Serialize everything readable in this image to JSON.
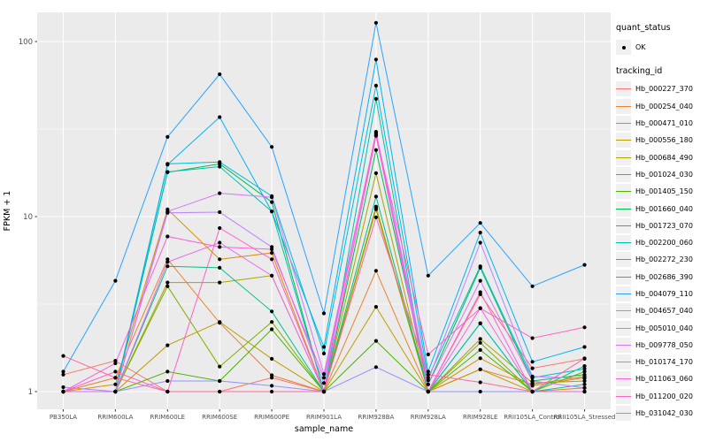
{
  "figure": {
    "bg": "#FFFFFF",
    "panel_bg": "#EBEBEB",
    "grid_color": "#FFFFFF",
    "tick_color": "#333333",
    "tick_label_color": "#4D4D4D",
    "point_color": "#000000"
  },
  "axes": {
    "x_title": "sample_name",
    "y_title": "FPKM + 1",
    "y_tick_labels": [
      "1",
      "10",
      "100"
    ]
  },
  "legend": {
    "quant_status_title": "quant_status",
    "quant_status_items": [
      {
        "label": "OK",
        "shape": "point"
      }
    ],
    "tracking_id_title": "tracking_id"
  },
  "chart_data": {
    "type": "line",
    "title": "",
    "xlabel": "sample_name",
    "ylabel": "FPKM + 1",
    "x_type": "categorical",
    "y_scale": "log10",
    "y_ticks": [
      1,
      10,
      100
    ],
    "y_minor": [
      3.162,
      31.62
    ],
    "ylim": [
      0.79,
      150
    ],
    "grid": true,
    "legend_position": "right",
    "categories": [
      "PB350LA",
      "RRIM600LA",
      "RRIM600LE",
      "RRIM600SE",
      "RRIM600PE",
      "RRIM901LA",
      "RRIM928BA",
      "RRIM928LA",
      "RRIM928LE",
      "RRII105LA_Control",
      "RRII105LA_Stressed"
    ],
    "series": [
      {
        "name": "Hb_000227_370",
        "color": "#F8766D",
        "values": [
          1.25,
          1.5,
          1.0,
          1.0,
          1.2,
          1.0,
          11.2,
          1.0,
          3.6,
          1.36,
          1.54
        ]
      },
      {
        "name": "Hb_000254_040",
        "color": "#EA8331",
        "values": [
          1.0,
          1.2,
          5.7,
          2.47,
          1.24,
          1.0,
          4.9,
          1.0,
          1.34,
          1.1,
          1.22
        ]
      },
      {
        "name": "Hb_000471_010",
        "color": "#D89000",
        "values": [
          1.0,
          1.1,
          11.0,
          5.7,
          6.2,
          1.0,
          11.4,
          1.0,
          1.55,
          1.08,
          1.2
        ]
      },
      {
        "name": "Hb_000556_180",
        "color": "#C09B00",
        "values": [
          1.0,
          1.0,
          1.84,
          2.5,
          1.54,
          1.0,
          3.05,
          1.0,
          1.34,
          1.0,
          1.05
        ]
      },
      {
        "name": "Hb_000684_490",
        "color": "#A3A500",
        "values": [
          1.0,
          1.0,
          4.2,
          4.2,
          4.6,
          1.0,
          17.7,
          1.0,
          2.0,
          1.12,
          1.15
        ]
      },
      {
        "name": "Hb_001024_030",
        "color": "#7CAE00",
        "values": [
          1.0,
          1.0,
          4.0,
          1.39,
          2.5,
          1.0,
          11.0,
          1.0,
          1.9,
          1.0,
          1.3
        ]
      },
      {
        "name": "Hb_001405_150",
        "color": "#49B500",
        "values": [
          1.0,
          1.0,
          1.3,
          1.15,
          2.27,
          1.0,
          1.95,
          1.0,
          1.73,
          1.0,
          1.0
        ]
      },
      {
        "name": "Hb_001660_040",
        "color": "#00BB4E",
        "values": [
          1.0,
          1.0,
          17.9,
          20.0,
          12.1,
          1.0,
          24.0,
          1.1,
          5.1,
          1.15,
          1.25
        ]
      },
      {
        "name": "Hb_001723_070",
        "color": "#00C087",
        "values": [
          1.0,
          1.0,
          5.2,
          5.1,
          2.87,
          1.0,
          13.0,
          1.0,
          2.45,
          1.0,
          1.4
        ]
      },
      {
        "name": "Hb_002200_060",
        "color": "#00C0B2",
        "values": [
          1.0,
          1.0,
          18.0,
          19.3,
          10.7,
          1.0,
          47.0,
          1.0,
          2.46,
          1.0,
          1.1
        ]
      },
      {
        "name": "Hb_002272_230",
        "color": "#00BCD8",
        "values": [
          1.0,
          1.0,
          20.0,
          20.5,
          13.1,
          1.65,
          56.0,
          1.2,
          5.2,
          1.2,
          1.35
        ]
      },
      {
        "name": "Hb_002686_390",
        "color": "#00B3F2",
        "values": [
          1.0,
          1.0,
          19.8,
          37.0,
          10.7,
          1.8,
          79.0,
          1.3,
          8.1,
          1.48,
          1.8
        ]
      },
      {
        "name": "Hb_004079_110",
        "color": "#29A3FF",
        "values": [
          1.3,
          4.3,
          28.5,
          65.0,
          25.0,
          2.8,
          128.0,
          4.6,
          9.2,
          4.0,
          5.3
        ]
      },
      {
        "name": "Hb_004657_040",
        "color": "#9590FF",
        "values": [
          1.06,
          1.0,
          1.15,
          1.15,
          1.08,
          1.0,
          1.38,
          1.0,
          1.0,
          1.0,
          1.0
        ]
      },
      {
        "name": "Hb_005010_040",
        "color": "#B983FF",
        "values": [
          1.0,
          1.0,
          10.5,
          10.6,
          6.7,
          1.12,
          30.5,
          1.16,
          7.1,
          1.22,
          1.19
        ]
      },
      {
        "name": "Hb_009778_050",
        "color": "#D575FE",
        "values": [
          1.0,
          1.0,
          10.7,
          13.6,
          12.9,
          1.26,
          29.5,
          1.1,
          4.3,
          1.15,
          1.05
        ]
      },
      {
        "name": "Hb_010174_170",
        "color": "#EA69EF",
        "values": [
          1.0,
          1.0,
          5.5,
          7.1,
          4.6,
          1.0,
          29.0,
          1.0,
          3.0,
          1.0,
          1.0
        ]
      },
      {
        "name": "Hb_011063_060",
        "color": "#F763DF",
        "values": [
          1.0,
          1.45,
          7.7,
          6.7,
          6.5,
          1.2,
          30.0,
          1.0,
          3.7,
          1.0,
          1.0
        ]
      },
      {
        "name": "Hb_011200_020",
        "color": "#FF61C7",
        "values": [
          1.0,
          1.3,
          1.0,
          8.6,
          5.7,
          1.0,
          28.9,
          1.63,
          2.99,
          2.02,
          2.33
        ]
      },
      {
        "name": "Hb_031042_030",
        "color": "#FF689E",
        "values": [
          1.6,
          1.2,
          1.0,
          1.0,
          1.0,
          1.0,
          9.9,
          1.25,
          1.13,
          1.0,
          1.55
        ]
      }
    ]
  }
}
